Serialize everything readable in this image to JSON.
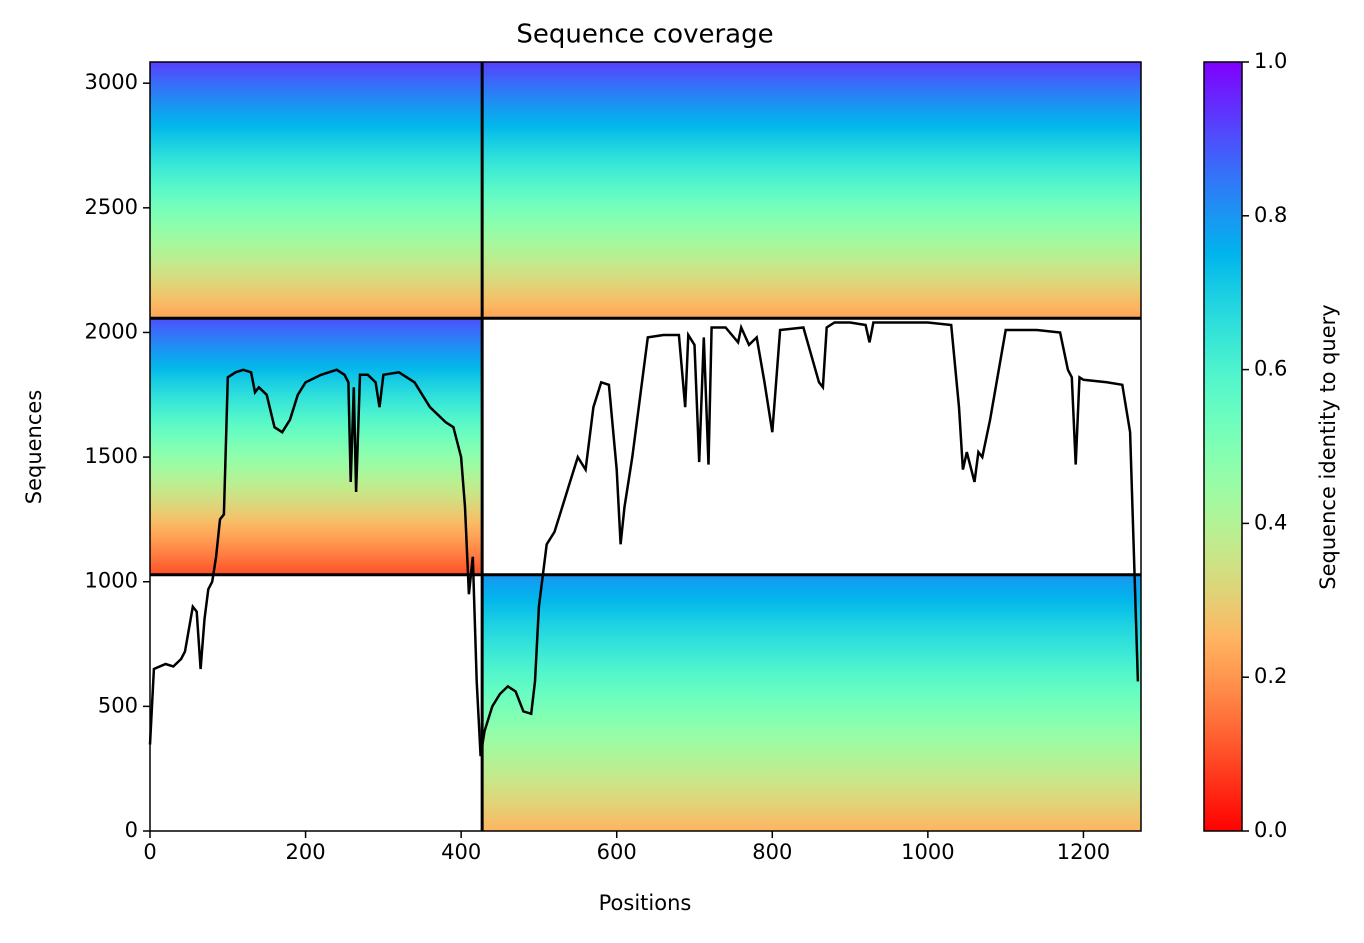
{
  "chart_data": {
    "type": "coverage",
    "title": "Sequence coverage",
    "x_label": "Positions",
    "y_label": "Sequences",
    "colorbar_label": "Sequence identity to query",
    "xlim": [
      0,
      1274
    ],
    "ylim": [
      0,
      3085
    ],
    "xticks": [
      0,
      200,
      400,
      600,
      800,
      1000,
      1200
    ],
    "yticks": [
      0,
      500,
      1000,
      1500,
      2000,
      2500,
      3000
    ],
    "clim": [
      0,
      1
    ],
    "cticks": [
      {
        "value": 0,
        "label": "0.0"
      },
      0.2,
      0.4,
      0.6,
      0.8,
      {
        "value": 1,
        "label": "1.0"
      }
    ],
    "block_dividers_x": [
      427
    ],
    "block_dividers_y": [
      1028,
      2057
    ],
    "blocks": [
      {
        "x": [
          0,
          427
        ],
        "y": [
          2057,
          3085
        ],
        "identity": [
          0.22,
          0.92
        ]
      },
      {
        "x": [
          427,
          1274
        ],
        "y": [
          2057,
          3085
        ],
        "identity": [
          0.22,
          0.92
        ]
      },
      {
        "x": [
          0,
          427
        ],
        "y": [
          1028,
          2057
        ],
        "identity": [
          0.1,
          0.9
        ]
      },
      {
        "x": [
          427,
          1274
        ],
        "y": [
          0,
          1028
        ],
        "identity": [
          0.25,
          0.8
        ]
      }
    ],
    "line_color": "#000000",
    "x": [
      0,
      5,
      20,
      30,
      40,
      45,
      55,
      60,
      65,
      70,
      75,
      80,
      85,
      90,
      95,
      100,
      110,
      120,
      130,
      135,
      140,
      150,
      160,
      170,
      180,
      190,
      200,
      220,
      240,
      250,
      255,
      258,
      262,
      265,
      270,
      280,
      290,
      295,
      300,
      320,
      340,
      360,
      380,
      390,
      400,
      405,
      410,
      415,
      420,
      425,
      430,
      440,
      450,
      460,
      470,
      480,
      490,
      495,
      500,
      510,
      520,
      530,
      540,
      550,
      560,
      570,
      580,
      590,
      600,
      605,
      610,
      620,
      640,
      660,
      680,
      688,
      692,
      700,
      706,
      712,
      718,
      722,
      740,
      756,
      760,
      770,
      780,
      790,
      800,
      810,
      840,
      860,
      865,
      870,
      880,
      900,
      920,
      925,
      930,
      1000,
      1030,
      1040,
      1045,
      1050,
      1060,
      1065,
      1070,
      1080,
      1100,
      1140,
      1170,
      1180,
      1185,
      1190,
      1195,
      1200,
      1230,
      1250,
      1260,
      1265,
      1270
    ],
    "values": [
      347,
      650,
      670,
      660,
      690,
      720,
      900,
      880,
      650,
      850,
      970,
      1000,
      1100,
      1250,
      1270,
      1820,
      1840,
      1850,
      1840,
      1760,
      1780,
      1750,
      1620,
      1600,
      1650,
      1750,
      1800,
      1830,
      1850,
      1830,
      1800,
      1400,
      1780,
      1360,
      1830,
      1830,
      1800,
      1700,
      1830,
      1840,
      1800,
      1700,
      1640,
      1620,
      1500,
      1300,
      950,
      1100,
      600,
      300,
      400,
      500,
      550,
      580,
      560,
      480,
      470,
      600,
      900,
      1150,
      1200,
      1300,
      1400,
      1500,
      1450,
      1700,
      1800,
      1790,
      1450,
      1150,
      1300,
      1500,
      1980,
      1990,
      1990,
      1700,
      1990,
      1950,
      1480,
      1980,
      1470,
      2020,
      2020,
      1960,
      2020,
      1950,
      1980,
      1800,
      1600,
      2010,
      2020,
      1800,
      1780,
      2020,
      2040,
      2040,
      2030,
      1960,
      2040,
      2040,
      2030,
      1700,
      1450,
      1520,
      1400,
      1520,
      1500,
      1650,
      2010,
      2010,
      2000,
      1850,
      1820,
      1470,
      1820,
      1810,
      1800,
      1790,
      1600,
      1100,
      600
    ]
  }
}
